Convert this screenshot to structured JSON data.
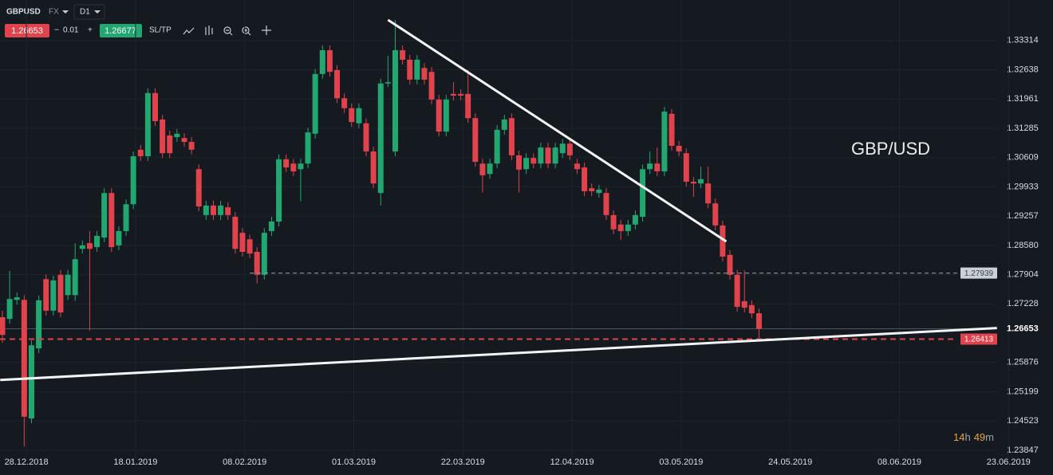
{
  "toolbar": {
    "symbol": "GBPUSD",
    "market": "FX",
    "timeframe": "D1",
    "bid": "1.26653",
    "spread_minus": "−",
    "spread": "0.01",
    "spread_plus": "+",
    "ask": "1.26677",
    "sltp": "SL/TP"
  },
  "chart_data": {
    "type": "candlestick",
    "annotation": "GBP/USD",
    "up_color": "#22a771",
    "down_color": "#e0434c",
    "open": [
      1.2692,
      1.2688,
      1.2732,
      1.2732,
      1.2458,
      1.262,
      1.278,
      1.2707,
      1.279,
      1.2743,
      1.2743,
      1.285,
      1.2863,
      1.2854,
      1.2876,
      1.2979,
      1.2858,
      1.2891,
      1.2953,
      1.3079,
      1.3064,
      1.321,
      1.3149,
      1.3112,
      1.3108,
      1.3106,
      1.3097,
      1.3034,
      1.2928,
      1.295,
      1.2928,
      1.2946,
      1.2924,
      1.2887,
      1.2872,
      1.2843,
      1.279,
      1.2891,
      1.2913,
      1.3057,
      1.3047,
      1.3034,
      1.3047,
      1.3116,
      1.3254,
      1.3309,
      1.3263,
      1.3198,
      1.3175,
      1.314,
      1.314,
      1.3075,
      1.2979,
      1.3232,
      1.3075,
      1.3309,
      1.3287,
      1.3241,
      1.3268,
      1.3259,
      1.3195,
      1.3121,
      1.3208,
      1.3208,
      1.3208,
      1.3152,
      1.3047,
      1.3023,
      1.3047,
      1.3125,
      1.3152,
      1.3066,
      1.3034,
      1.306,
      1.3047,
      1.3084,
      1.3047,
      1.3071,
      1.3093,
      1.3047,
      1.3038,
      1.299,
      1.2979,
      1.2979,
      1.2928,
      1.2906,
      1.2891,
      1.2906,
      1.2924,
      1.3034,
      1.3047,
      1.3029,
      1.3162,
      1.3088,
      1.3071,
      1.3005,
      1.3001,
      1.3001,
      1.2955,
      1.2904,
      1.2836,
      1.279,
      1.2729,
      1.272,
      1.2701
    ],
    "high": [
      1.2707,
      1.2799,
      1.2749,
      1.2743,
      1.2638,
      1.2742,
      1.2791,
      1.2788,
      1.2801,
      1.2801,
      1.2863,
      1.2869,
      1.2891,
      1.2891,
      1.299,
      1.299,
      1.2902,
      1.2964,
      1.3075,
      1.309,
      1.3221,
      1.3221,
      1.316,
      1.3123,
      1.3127,
      1.3117,
      1.3108,
      1.3045,
      1.2961,
      1.2961,
      1.2961,
      1.2957,
      1.2935,
      1.2898,
      1.2883,
      1.2854,
      1.2898,
      1.2924,
      1.3068,
      1.3068,
      1.3058,
      1.3058,
      1.313,
      1.3265,
      1.332,
      1.332,
      1.3274,
      1.3209,
      1.3186,
      1.3186,
      1.3151,
      1.3086,
      1.3243,
      1.3296,
      1.3379,
      1.332,
      1.3298,
      1.3298,
      1.3279,
      1.327,
      1.3206,
      1.3206,
      1.3235,
      1.3219,
      1.3263,
      1.3163,
      1.3058,
      1.3058,
      1.3136,
      1.316,
      1.3163,
      1.3077,
      1.3071,
      1.3071,
      1.3095,
      1.3095,
      1.3095,
      1.3104,
      1.3104,
      1.3058,
      1.3049,
      1.3001,
      1.2998,
      1.299,
      1.2939,
      1.2917,
      1.2917,
      1.2939,
      1.3045,
      1.3075,
      1.3084,
      1.3178,
      1.3173,
      1.3099,
      1.3082,
      1.3016,
      1.304,
      1.304,
      1.2966,
      1.2915,
      1.2847,
      1.2801,
      1.28,
      1.2731,
      1.2712
    ],
    "low": [
      1.2633,
      1.2677,
      1.2721,
      1.2393,
      1.2447,
      1.2609,
      1.2696,
      1.2696,
      1.2692,
      1.2732,
      1.273,
      1.2839,
      1.2661,
      1.2843,
      1.2865,
      1.2843,
      1.2847,
      1.288,
      1.2942,
      1.3053,
      1.3053,
      1.3134,
      1.306,
      1.306,
      1.3097,
      1.3086,
      1.3068,
      1.2937,
      1.2917,
      1.2917,
      1.2917,
      1.2917,
      1.2839,
      1.2832,
      1.2828,
      1.277,
      1.2779,
      1.288,
      1.2902,
      1.3027,
      1.3018,
      1.296,
      1.3036,
      1.3105,
      1.3243,
      1.3248,
      1.3187,
      1.3164,
      1.3132,
      1.3129,
      1.3064,
      1.299,
      1.295,
      1.3224,
      1.3064,
      1.3276,
      1.323,
      1.323,
      1.323,
      1.3184,
      1.311,
      1.311,
      1.3193,
      1.3193,
      1.3141,
      1.304,
      1.298,
      1.3012,
      1.3036,
      1.3114,
      1.3055,
      1.298,
      1.3023,
      1.3036,
      1.3036,
      1.3036,
      1.3036,
      1.306,
      1.3055,
      1.3023,
      1.2972,
      1.2972,
      1.2968,
      1.2917,
      1.2884,
      1.287,
      1.288,
      1.2895,
      1.2913,
      1.3023,
      1.3018,
      1.3018,
      1.3077,
      1.3064,
      1.2994,
      1.297,
      1.299,
      1.2944,
      1.2893,
      1.2821,
      1.2779,
      1.2705,
      1.2703,
      1.269,
      1.2644
    ],
    "close": [
      1.2651,
      1.2734,
      1.2738,
      1.2462,
      1.2627,
      1.2731,
      1.2707,
      1.2777,
      1.2703,
      1.279,
      1.2826,
      1.2858,
      1.285,
      1.288,
      1.2979,
      1.2854,
      1.2891,
      1.2953,
      1.3064,
      1.3064,
      1.321,
      1.3145,
      1.3071,
      1.3071,
      1.3116,
      1.3097,
      1.3079,
      1.2948,
      1.295,
      1.2928,
      1.295,
      1.2928,
      1.285,
      1.2843,
      1.2839,
      1.279,
      1.2887,
      1.2913,
      1.3057,
      1.3038,
      1.3029,
      1.3047,
      1.3119,
      1.3254,
      1.3309,
      1.3259,
      1.3198,
      1.3175,
      1.3143,
      1.3175,
      1.3075,
      1.3001,
      1.3232,
      1.3235,
      1.3309,
      1.3287,
      1.3241,
      1.3287,
      1.3241,
      1.3195,
      1.3121,
      1.3195,
      1.3204,
      1.3204,
      1.3152,
      1.3051,
      1.302,
      1.3047,
      1.3125,
      1.3149,
      1.3066,
      1.3033,
      1.306,
      1.3047,
      1.3084,
      1.3047,
      1.3084,
      1.3093,
      1.3066,
      1.3034,
      1.2983,
      1.2983,
      1.2987,
      1.2928,
      1.2895,
      1.2891,
      1.2906,
      1.2928,
      1.3034,
      1.3047,
      1.3029,
      1.3167,
      1.3088,
      1.3075,
      1.3005,
      1.3001,
      1.3011,
      1.2955,
      1.2904,
      1.2832,
      1.279,
      1.2716,
      1.2714,
      1.2701,
      1.2665
    ],
    "ylim": [
      1.2366,
      1.3425
    ],
    "yticks": [
      1.33314,
      1.32638,
      1.31961,
      1.31285,
      1.30609,
      1.29933,
      1.29257,
      {
        "value": 1.2858,
        "label": "1.28580"
      },
      1.27904,
      1.27228,
      1.25876,
      1.25199,
      1.24523,
      1.23847
    ],
    "xticks": [
      "28.12.2018",
      "18.01.2019",
      "08.02.2019",
      "01.03.2019",
      "22.03.2019",
      "12.04.2019",
      "03.05.2019",
      "24.05.2019",
      "08.06.2019",
      "23.06.2019"
    ],
    "current_price": 1.26653,
    "levels": [
      {
        "value": 1.27939,
        "start": 34,
        "color": "#8a949e"
      },
      {
        "value": 1.26413,
        "color": "#e0434c"
      }
    ],
    "trendlines": [
      [
        [
          53,
          1.3379
        ],
        [
          99.5,
          1.2867
        ]
      ],
      [
        [
          -0.3,
          1.2547
        ],
        [
          136.7,
          1.2667
        ]
      ]
    ],
    "countdown": [
      "14",
      "h",
      "49",
      "m"
    ],
    "grid": true
  }
}
